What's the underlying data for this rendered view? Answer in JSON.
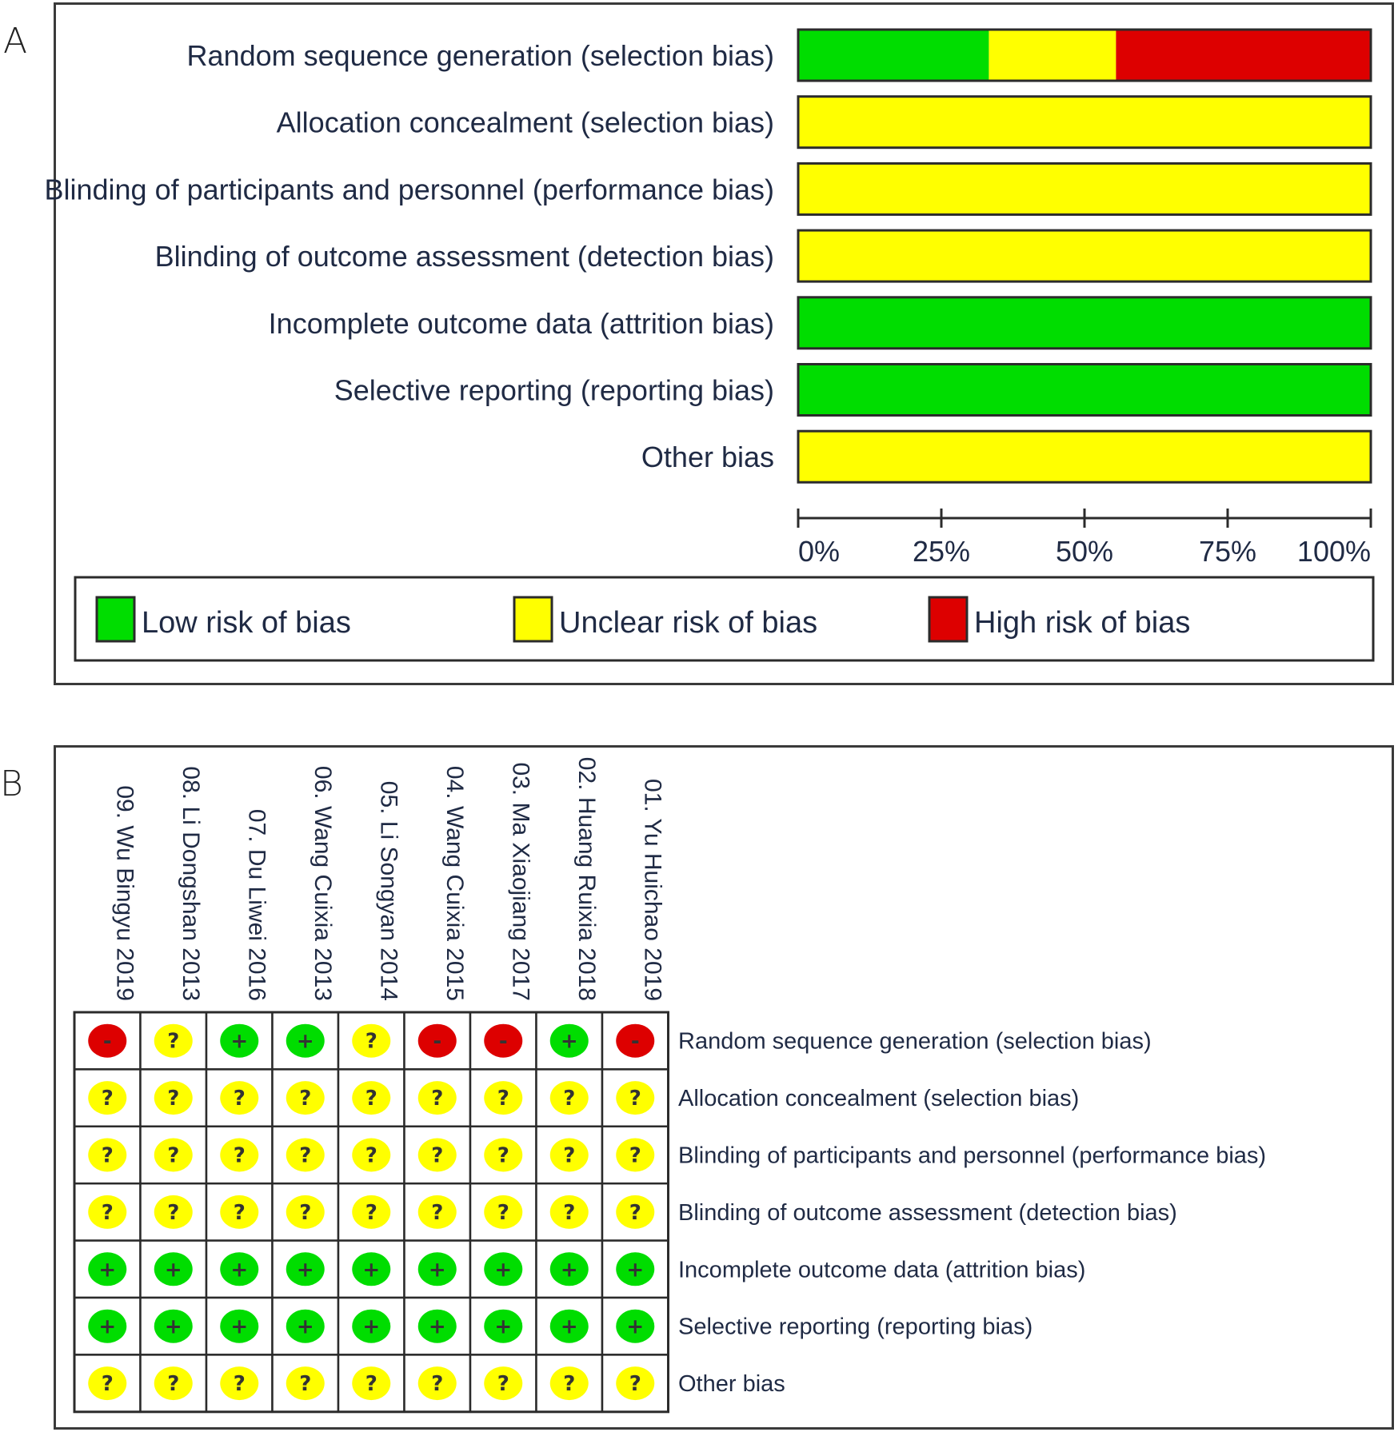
{
  "panel_a": {
    "letter": "A"
  },
  "panel_b": {
    "letter": "B"
  },
  "colors": {
    "low": "#00dd00",
    "unclear": "#ffff00",
    "high": "#dd0000"
  },
  "legend": {
    "low": "Low risk of bias",
    "unclear": "Unclear risk of bias",
    "high": "High risk of bias"
  },
  "symbols": {
    "low": "+",
    "unclear": "?",
    "high": "-"
  },
  "chart_data": [
    {
      "type": "bar",
      "orientation": "horizontal-stacked",
      "categories": [
        "Random sequence generation (selection bias)",
        "Allocation concealment (selection bias)",
        "Blinding of participants and personnel (performance bias)",
        "Blinding of outcome assessment (detection bias)",
        "Incomplete outcome data (attrition bias)",
        "Selective reporting (reporting bias)",
        "Other bias"
      ],
      "series": [
        {
          "name": "Low risk of bias",
          "key": "low",
          "values": [
            33.3,
            0,
            0,
            0,
            100,
            100,
            0
          ]
        },
        {
          "name": "Unclear risk of bias",
          "key": "unclear",
          "values": [
            22.2,
            100,
            100,
            100,
            0,
            0,
            100
          ]
        },
        {
          "name": "High risk of bias",
          "key": "high",
          "values": [
            44.4,
            0,
            0,
            0,
            0,
            0,
            0
          ]
        }
      ],
      "xticks": [
        "0%",
        "25%",
        "50%",
        "75%",
        "100%"
      ],
      "xlim": [
        0,
        100
      ],
      "legend_position": "bottom"
    },
    {
      "type": "table",
      "studies": [
        "09. Wu Bingyu 2019",
        "08. Li Dongshan 2013",
        "07. Du Liwei 2016",
        "06. Wang Cuixia 2013",
        "05. Li Songyan 2014",
        "04. Wang Cuixia 2015",
        "03. Ma Xiaojiang 2017",
        "02. Huang Ruixia 2018",
        "01. Yu Huichao 2019"
      ],
      "domains": [
        "Random sequence generation (selection bias)",
        "Allocation concealment (selection bias)",
        "Blinding of participants and personnel (performance bias)",
        "Blinding of outcome assessment (detection bias)",
        "Incomplete outcome data (attrition bias)",
        "Selective reporting (reporting bias)",
        "Other bias"
      ],
      "judgements": [
        [
          "high",
          "unclear",
          "low",
          "low",
          "unclear",
          "high",
          "high",
          "low",
          "high"
        ],
        [
          "unclear",
          "unclear",
          "unclear",
          "unclear",
          "unclear",
          "unclear",
          "unclear",
          "unclear",
          "unclear"
        ],
        [
          "unclear",
          "unclear",
          "unclear",
          "unclear",
          "unclear",
          "unclear",
          "unclear",
          "unclear",
          "unclear"
        ],
        [
          "unclear",
          "unclear",
          "unclear",
          "unclear",
          "unclear",
          "unclear",
          "unclear",
          "unclear",
          "unclear"
        ],
        [
          "low",
          "low",
          "low",
          "low",
          "low",
          "low",
          "low",
          "low",
          "low"
        ],
        [
          "low",
          "low",
          "low",
          "low",
          "low",
          "low",
          "low",
          "low",
          "low"
        ],
        [
          "unclear",
          "unclear",
          "unclear",
          "unclear",
          "unclear",
          "unclear",
          "unclear",
          "unclear",
          "unclear"
        ]
      ]
    }
  ]
}
